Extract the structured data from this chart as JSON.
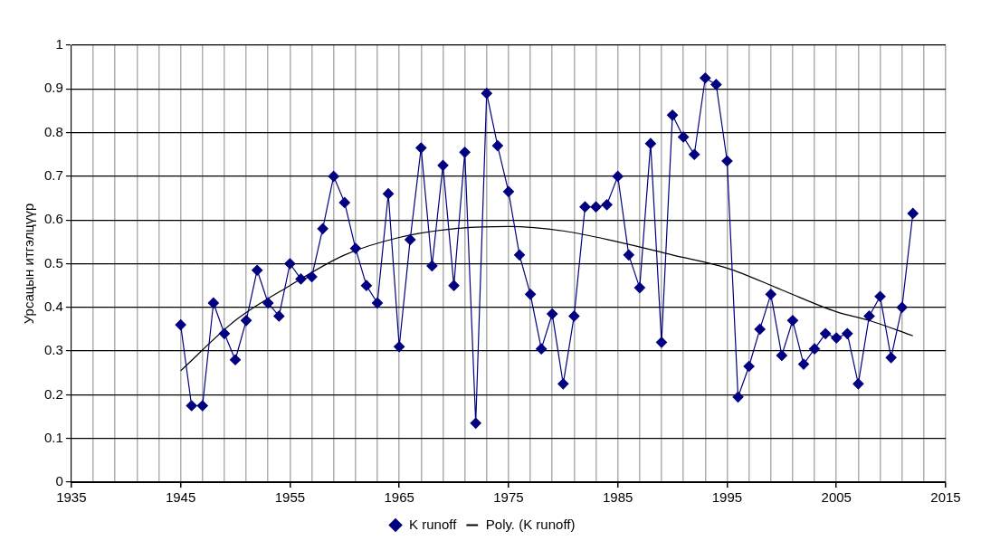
{
  "chart_data": {
    "type": "line",
    "ylabel": "Урсацын итгэлцүүр",
    "xlim": [
      1935,
      2015
    ],
    "xticks": [
      1935,
      {
        "value": 1937,
        "label": null
      },
      {
        "value": 1939,
        "label": null
      },
      {
        "value": 1941,
        "label": null
      },
      {
        "value": 1943,
        "label": null
      },
      1945,
      {
        "value": 1947,
        "label": null
      },
      {
        "value": 1949,
        "label": null
      },
      {
        "value": 1951,
        "label": null
      },
      {
        "value": 1953,
        "label": null
      },
      1955,
      {
        "value": 1957,
        "label": null
      },
      {
        "value": 1959,
        "label": null
      },
      {
        "value": 1961,
        "label": null
      },
      {
        "value": 1963,
        "label": null
      },
      1965,
      {
        "value": 1967,
        "label": null
      },
      {
        "value": 1969,
        "label": null
      },
      {
        "value": 1971,
        "label": null
      },
      {
        "value": 1973,
        "label": null
      },
      1975,
      {
        "value": 1977,
        "label": null
      },
      {
        "value": 1979,
        "label": null
      },
      {
        "value": 1981,
        "label": null
      },
      {
        "value": 1983,
        "label": null
      },
      1985,
      {
        "value": 1987,
        "label": null
      },
      {
        "value": 1989,
        "label": null
      },
      {
        "value": 1991,
        "label": null
      },
      {
        "value": 1993,
        "label": null
      },
      1995,
      {
        "value": 1997,
        "label": null
      },
      {
        "value": 1999,
        "label": null
      },
      {
        "value": 2001,
        "label": null
      },
      {
        "value": 2003,
        "label": null
      },
      2005,
      {
        "value": 2007,
        "label": null
      },
      {
        "value": 2009,
        "label": null
      },
      {
        "value": 2011,
        "label": null
      },
      {
        "value": 2013,
        "label": null
      },
      2015
    ],
    "ylim": [
      0,
      1
    ],
    "yticks": [
      0,
      0.1,
      0.2,
      0.3,
      0.4,
      0.5,
      0.6,
      0.7,
      0.8,
      0.9,
      1
    ],
    "grid": true,
    "legend": "bottom",
    "line_style": "solid",
    "series": [
      {
        "name": "K runoff",
        "color": "#000080",
        "marker": "diamond",
        "x": [
          1945,
          1946,
          1947,
          1948,
          1949,
          1950,
          1951,
          1952,
          1953,
          1954,
          1955,
          1956,
          1957,
          1958,
          1959,
          1960,
          1961,
          1962,
          1963,
          1964,
          1965,
          1966,
          1967,
          1968,
          1969,
          1970,
          1971,
          1972,
          1973,
          1974,
          1975,
          1976,
          1977,
          1978,
          1979,
          1980,
          1981,
          1982,
          1983,
          1984,
          1985,
          1986,
          1987,
          1988,
          1989,
          1990,
          1991,
          1992,
          1993,
          1994,
          1995,
          1996,
          1997,
          1998,
          1999,
          2000,
          2001,
          2002,
          2003,
          2004,
          2005,
          2006,
          2007,
          2008,
          2009,
          2010,
          2011,
          2012
        ],
        "values": [
          0.36,
          0.175,
          0.175,
          0.41,
          0.34,
          0.28,
          0.37,
          0.485,
          0.41,
          0.38,
          0.5,
          0.465,
          0.47,
          0.58,
          0.7,
          0.64,
          0.535,
          0.45,
          0.41,
          0.66,
          0.31,
          0.555,
          0.765,
          0.495,
          0.725,
          0.45,
          0.755,
          0.135,
          0.89,
          0.77,
          0.665,
          0.52,
          0.43,
          0.305,
          0.385,
          0.225,
          0.38,
          0.63,
          0.63,
          0.635,
          0.7,
          0.52,
          0.445,
          0.775,
          0.32,
          0.84,
          0.79,
          0.75,
          0.925,
          0.91,
          0.735,
          0.195,
          0.265,
          0.35,
          0.43,
          0.29,
          0.37,
          0.27,
          0.305,
          0.34,
          0.33,
          0.34,
          0.225,
          0.38,
          0.425,
          0.285,
          0.4,
          0.615
        ]
      },
      {
        "name": "Poly. (K runoff)",
        "color": "#000000",
        "marker": "none",
        "x": [
          1945,
          1950,
          1955,
          1960,
          1965,
          1970,
          1975,
          1980,
          1985,
          1990,
          1995,
          2000,
          2005,
          2008,
          2012
        ],
        "values": [
          0.255,
          0.37,
          0.45,
          0.52,
          0.56,
          0.58,
          0.585,
          0.575,
          0.55,
          0.52,
          0.49,
          0.44,
          0.39,
          0.37,
          0.335
        ]
      }
    ]
  }
}
